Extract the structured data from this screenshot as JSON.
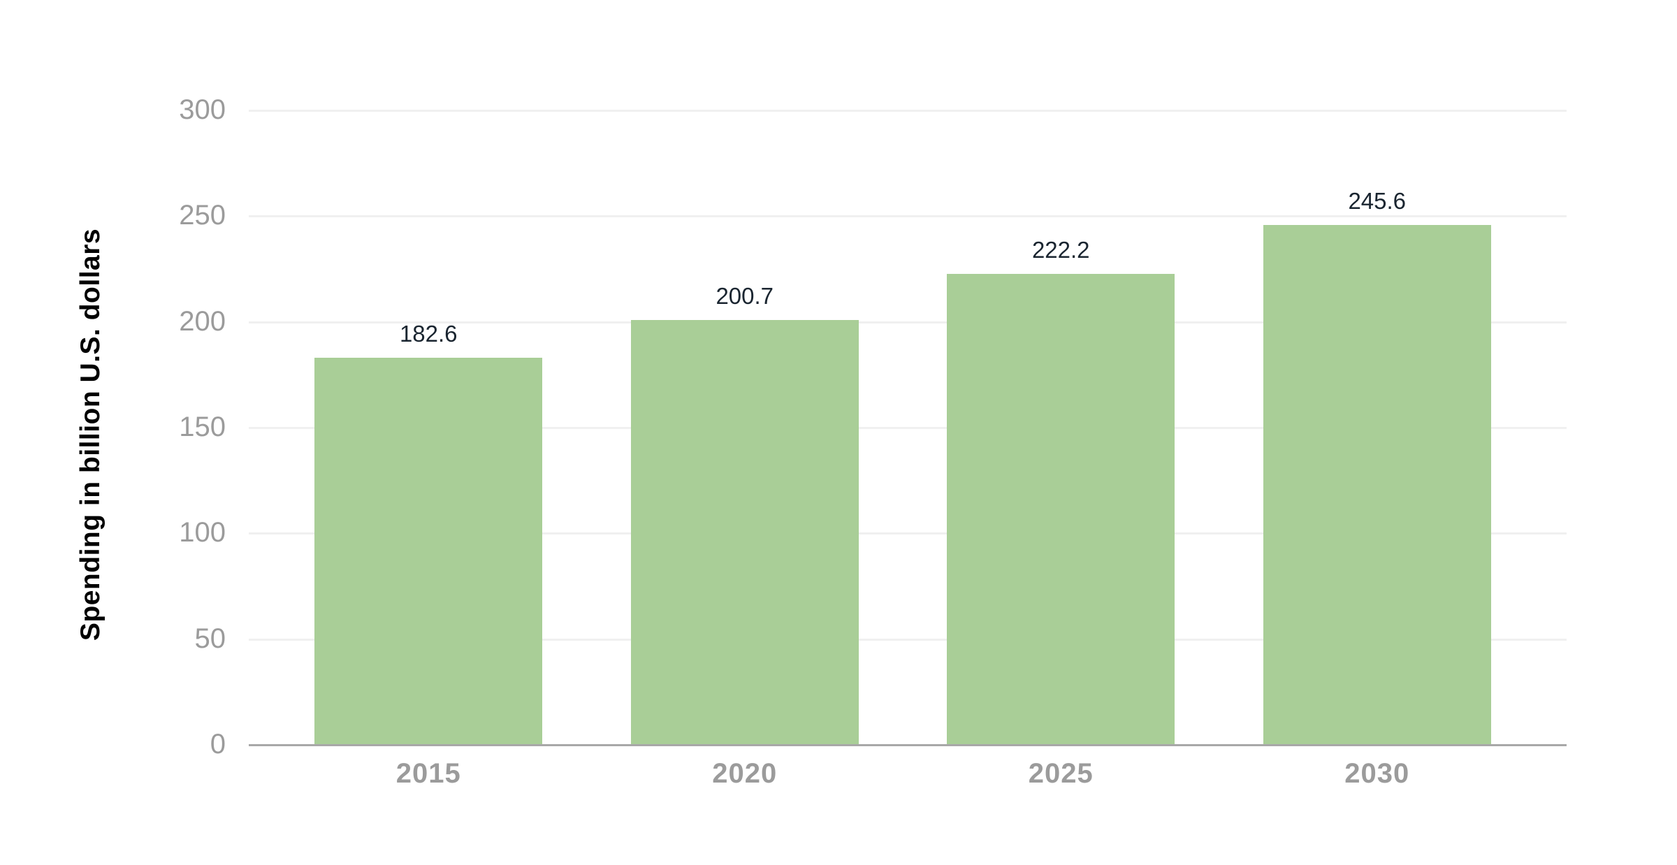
{
  "figure": {
    "background": "#ffffff"
  },
  "chart_data": {
    "type": "bar",
    "title": "",
    "xlabel": "",
    "ylabel": "Spending in billion U.S. dollars",
    "categories": [
      "2015",
      "2020",
      "2025",
      "2030"
    ],
    "values": [
      182.6,
      200.7,
      222.2,
      245.6
    ],
    "data_labels": [
      "182.6",
      "200.7",
      "222.2",
      "245.6"
    ],
    "ylim": [
      0,
      300
    ],
    "yticks": [
      0,
      50,
      100,
      150,
      200,
      250,
      300
    ],
    "grid": true,
    "legend": false,
    "colors": {
      "bar": "#a9ce97",
      "gridline": "#f0f0f0",
      "axis_line": "#a8a8a8",
      "tick_label": "#9b9b9b",
      "data_label": "#1a2530",
      "axis_title": "#000000"
    }
  }
}
